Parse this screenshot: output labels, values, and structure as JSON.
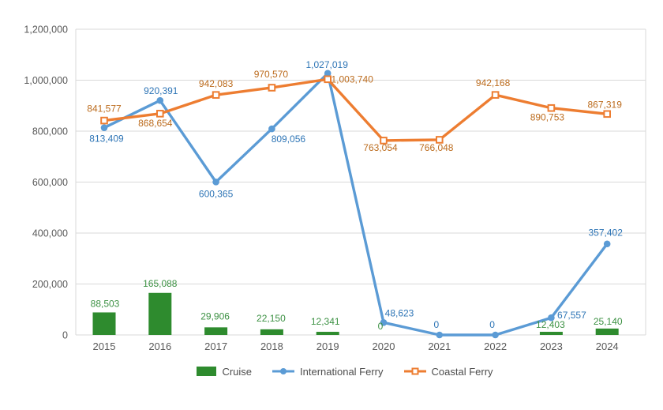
{
  "colors": {
    "background": "#FFFFFF",
    "grid": "#D9D9D9",
    "axis_text": "#595959",
    "legend_text": "#4D4D4D"
  },
  "chart_data": {
    "type": "combo-bar-line",
    "title": "",
    "categories": [
      "2015",
      "2016",
      "2017",
      "2018",
      "2019",
      "2020",
      "2021",
      "2022",
      "2023",
      "2024"
    ],
    "ylim": [
      0,
      1200000
    ],
    "ytick_step": 200000,
    "yticks": [
      "0",
      "200,000",
      "400,000",
      "600,000",
      "800,000",
      "1,000,000",
      "1,200,000"
    ],
    "grid": true,
    "legend_position": "bottom",
    "series": [
      {
        "name": "Cruise",
        "type": "bar",
        "color": "#2E8B2E",
        "label_color": "#3C9143",
        "values": [
          88503,
          165088,
          29906,
          22150,
          12341,
          0,
          0,
          0,
          12403,
          25140
        ],
        "labels": [
          "88,503",
          "165,088",
          "29,906",
          "22,150",
          "12,341",
          "0",
          "",
          "",
          "12,403",
          "25,140"
        ],
        "label_dx": [
          1,
          0,
          -1,
          -1,
          -3,
          -4,
          0,
          0,
          -1,
          1
        ],
        "label_dy": [
          -11,
          -12,
          -14,
          -14,
          -13,
          -11,
          0,
          0,
          -9,
          -9
        ]
      },
      {
        "name": "International Ferry",
        "type": "line",
        "marker": "circle",
        "color": "#5B9BD5",
        "label_color": "#2E75B6",
        "values": [
          813409,
          920391,
          600365,
          809056,
          1027019,
          48623,
          0,
          0,
          67557,
          357402
        ],
        "labels": [
          "813,409",
          "920,391",
          "600,365",
          "809,056",
          "1,027,019",
          "48,623",
          "0",
          "0",
          "67,557",
          "357,402"
        ],
        "label_dx": [
          3,
          1,
          0,
          21,
          -1,
          20,
          -4,
          -4,
          26,
          -2
        ],
        "label_dy": [
          14,
          -12,
          15,
          13,
          -11,
          -12,
          -13,
          -13,
          -3,
          -14
        ]
      },
      {
        "name": "Coastal Ferry",
        "type": "line",
        "marker": "square",
        "color": "#ED7D31",
        "label_color": "#BC6C1E",
        "values": [
          841577,
          868654,
          942083,
          970570,
          1003740,
          763054,
          766048,
          942168,
          890753,
          867319
        ],
        "labels": [
          "841,577",
          "868,654",
          "942,083",
          "970,570",
          "1,003,740",
          "763,054",
          "766,048",
          "942,168",
          "890,753",
          "867,319"
        ],
        "label_dx": [
          0,
          -6,
          0,
          -1,
          31,
          -4,
          -4,
          -3,
          -5,
          -3
        ],
        "label_dy": [
          -15,
          12,
          -14,
          -17,
          0,
          9,
          10,
          -15,
          12,
          -12
        ]
      }
    ]
  }
}
